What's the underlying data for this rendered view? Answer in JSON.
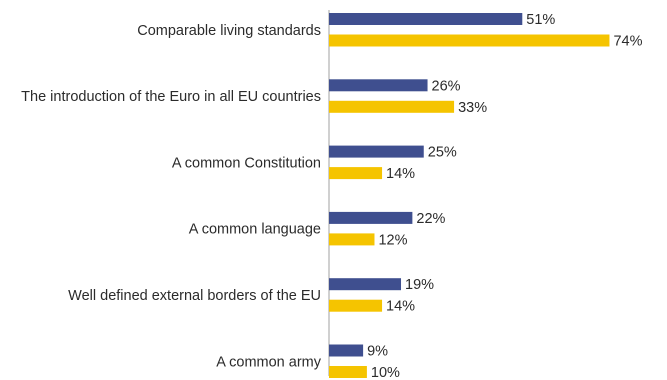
{
  "chart_data": {
    "type": "bar",
    "orientation": "horizontal",
    "categories": [
      "Comparable living standards",
      "The introduction of the Euro in all EU countries",
      "A common Constitution",
      "A common language",
      "Well defined external borders of the EU",
      "A common army"
    ],
    "series": [
      {
        "color": "#3f4f8f",
        "values": [
          51,
          26,
          25,
          22,
          19,
          9
        ],
        "labels": [
          "51%",
          "26%",
          "25%",
          "22%",
          "19%",
          "9%"
        ]
      },
      {
        "color": "#f5c400",
        "values": [
          74,
          33,
          14,
          12,
          14,
          10
        ],
        "labels": [
          "74%",
          "33%",
          "14%",
          "12%",
          "14%",
          "10%"
        ]
      }
    ],
    "unit": "%",
    "xlim": [
      0,
      100
    ],
    "grid": false,
    "legend": "none",
    "axis_line_color": "#a0a0a0"
  }
}
